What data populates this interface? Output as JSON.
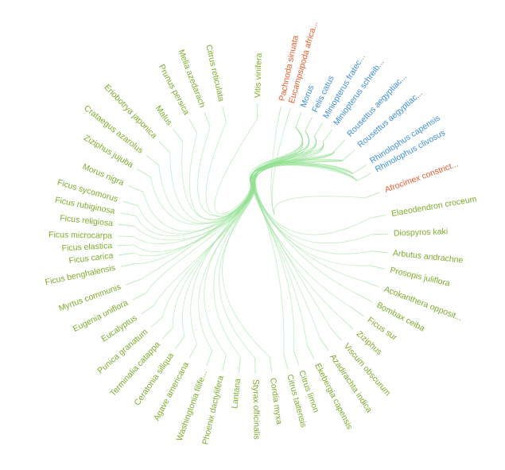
{
  "colors": {
    "plant": "#7cad2a",
    "mammal": "#3d8fe0",
    "insect": "#ef5a2a",
    "edge": "#8fe08f"
  },
  "nodes": [
    {
      "label": "Vitis vinifera",
      "group": "plant"
    },
    {
      "label": "Pachnoda sinuata",
      "group": "insect"
    },
    {
      "label": "Eucampsipoda africa...",
      "group": "insect"
    },
    {
      "label": "Morus",
      "group": "mammal"
    },
    {
      "label": "Felis catus",
      "group": "mammal"
    },
    {
      "label": "Miniopterus fratec...",
      "group": "mammal"
    },
    {
      "label": "Miniopterus schreib...",
      "group": "mammal"
    },
    {
      "label": "Rousettus aegyptiac...",
      "group": "mammal"
    },
    {
      "label": "Rousettus aegyptiac...",
      "group": "mammal"
    },
    {
      "label": "Rhinolophus capensis",
      "group": "mammal"
    },
    {
      "label": "Rhinolophus clivosus",
      "group": "mammal"
    },
    {
      "label": "Afrocimex constrict...",
      "group": "insect"
    },
    {
      "label": "Elaeodendron croceum",
      "group": "plant"
    },
    {
      "label": "Diospyros kaki",
      "group": "plant"
    },
    {
      "label": "Arbutus andrachne",
      "group": "plant"
    },
    {
      "label": "Prosopis juliflora",
      "group": "plant"
    },
    {
      "label": "Acokanthera opposit...",
      "group": "plant"
    },
    {
      "label": "Bombax ceiba",
      "group": "plant"
    },
    {
      "label": "Ficus sur",
      "group": "plant"
    },
    {
      "label": "Ziziphus",
      "group": "plant"
    },
    {
      "label": "Viscum obscurum",
      "group": "plant"
    },
    {
      "label": "Azadirachta indica",
      "group": "plant"
    },
    {
      "label": "Ekebergia capensis",
      "group": "plant"
    },
    {
      "label": "Citrus limon",
      "group": "plant"
    },
    {
      "label": "Citrus taitensis",
      "group": "plant"
    },
    {
      "label": "Cordia myxa",
      "group": "plant"
    },
    {
      "label": "Styrax officinalis",
      "group": "plant"
    },
    {
      "label": "Lantana",
      "group": "plant"
    },
    {
      "label": "Phoenix dactylifera",
      "group": "plant"
    },
    {
      "label": "Washingtonia filife...",
      "group": "plant"
    },
    {
      "label": "Agave americana",
      "group": "plant"
    },
    {
      "label": "Ceratonia siliqua",
      "group": "plant"
    },
    {
      "label": "Terminalia catappa",
      "group": "plant"
    },
    {
      "label": "Punica granatum",
      "group": "plant"
    },
    {
      "label": "Eucalyptus",
      "group": "plant"
    },
    {
      "label": "Eugenia uniflora",
      "group": "plant"
    },
    {
      "label": "Myrtus communis",
      "group": "plant"
    },
    {
      "label": "Ficus benghalensis",
      "group": "plant"
    },
    {
      "label": "Ficus carica",
      "group": "plant"
    },
    {
      "label": "Ficus elastica",
      "group": "plant"
    },
    {
      "label": "Ficus microcarpa",
      "group": "plant"
    },
    {
      "label": "Ficus religiosa",
      "group": "plant"
    },
    {
      "label": "Ficus rubiginosa",
      "group": "plant"
    },
    {
      "label": "Ficus sycomorus",
      "group": "plant"
    },
    {
      "label": "Morus nigra",
      "group": "plant"
    },
    {
      "label": "Ziziphus jujuba",
      "group": "plant"
    },
    {
      "label": "Crataegus azarolus",
      "group": "plant"
    },
    {
      "label": "Eriobotrya japonica",
      "group": "plant"
    },
    {
      "label": "Malus",
      "group": "plant"
    },
    {
      "label": "Prunus persica",
      "group": "plant"
    },
    {
      "label": "Melia azedarach",
      "group": "plant"
    },
    {
      "label": "Citrus reticulata",
      "group": "plant"
    }
  ]
}
